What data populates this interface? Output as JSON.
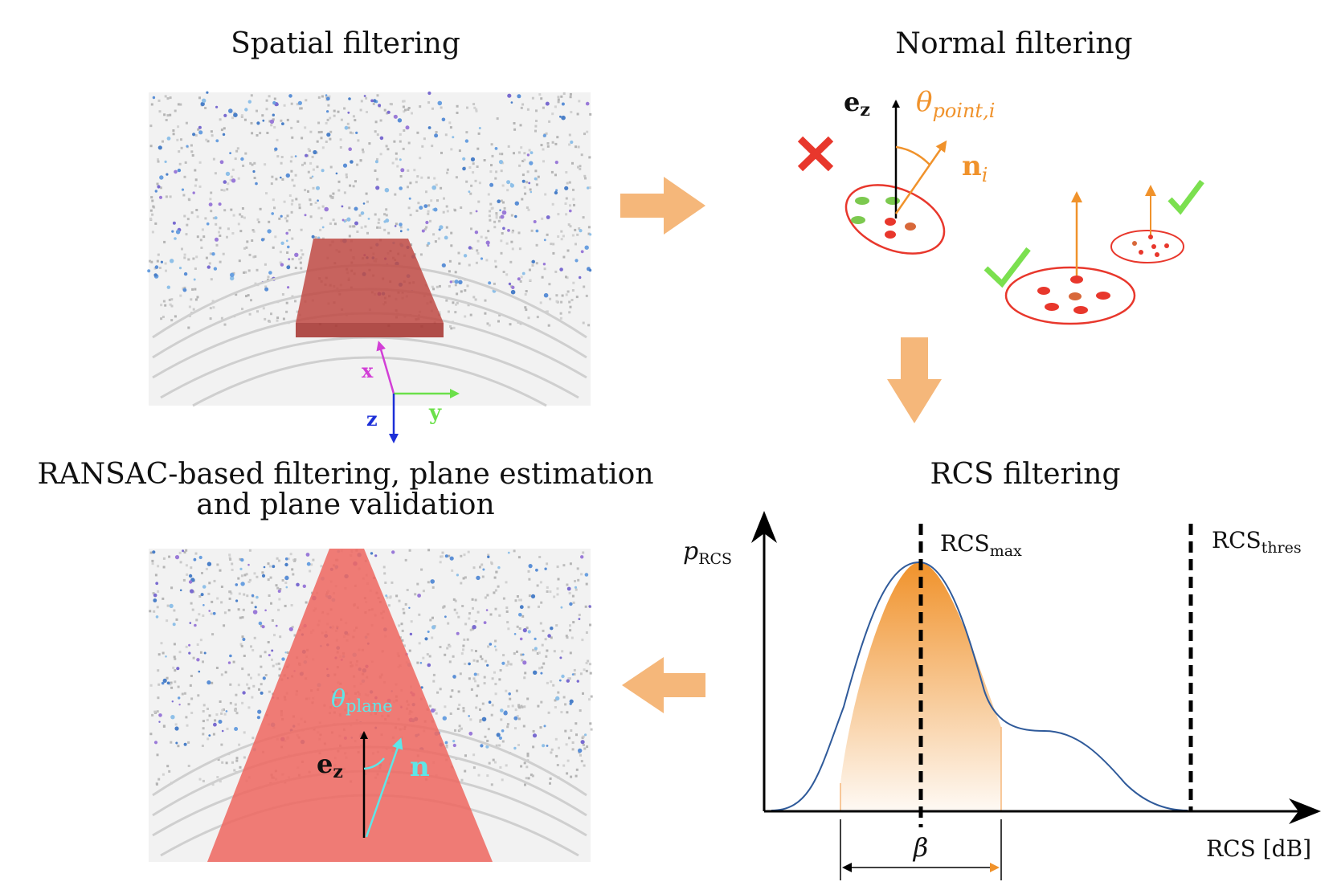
{
  "panels": {
    "spatial": {
      "title": "Spatial filtering",
      "axis_x": "x",
      "axis_y": "y",
      "axis_z": "z"
    },
    "normal": {
      "title": "Normal filtering",
      "ez_label": "e",
      "ez_sub": "z",
      "theta_label": "θ",
      "theta_sub": "point,i",
      "normal_label": "n",
      "normal_sub": "i"
    },
    "rcs": {
      "title": "RCS filtering",
      "ylabel": "p",
      "ylabel_sub": "RCS",
      "xlabel": "RCS [dB]",
      "max_label": "RCS",
      "max_sub": "max",
      "thres_label": "RCS",
      "thres_sub": "thres",
      "beta_label": "β"
    },
    "ransac": {
      "title_line1": "RANSAC-based filtering, plane estimation",
      "title_line2": "and plane validation",
      "theta_label": "θ",
      "theta_sub": "plane",
      "ez_label": "e",
      "ez_sub": "z",
      "normal_label": "n"
    }
  },
  "colors": {
    "flow_arrow": "#f5b77a",
    "red_box": "#d9534f",
    "plane_fill": "#ee6a63",
    "orange": "#f0922b",
    "cross": "#e8372c",
    "check": "#7be04f",
    "cyan": "#5ee6e8",
    "curve": "#2f5a9a",
    "axis_x": "#d23fd6",
    "axis_y": "#6be04a",
    "axis_z": "#1c2fd8"
  }
}
